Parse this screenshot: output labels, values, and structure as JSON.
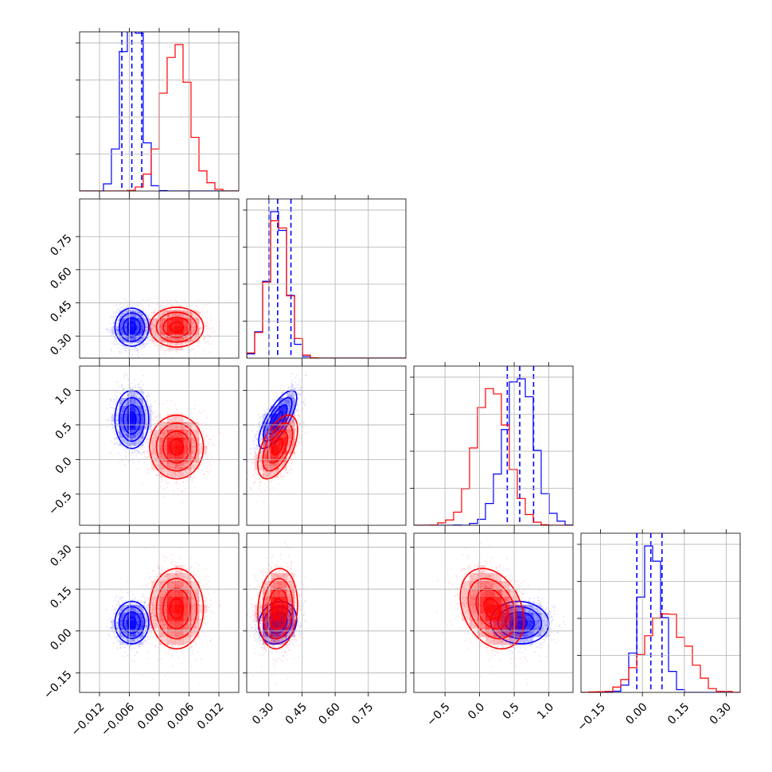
{
  "chart_data": {
    "type": "corner",
    "grid": true,
    "colors": {
      "blue": "#0000ff",
      "red": "#ff0000"
    },
    "parameters": [
      {
        "range": [
          -0.016,
          0.016
        ],
        "ticks": [
          -0.012,
          -0.006,
          0.0,
          0.006,
          0.012
        ],
        "tick_labels": [
          "−0.012",
          "−0.006",
          "0.000",
          "0.006",
          "0.012"
        ]
      },
      {
        "range": [
          0.2,
          0.92
        ],
        "ticks": [
          0.3,
          0.45,
          0.6,
          0.75
        ],
        "tick_labels": [
          "0.30",
          "0.45",
          "0.60",
          "0.75"
        ]
      },
      {
        "range": [
          -0.95,
          1.35
        ],
        "ticks": [
          -0.5,
          0.0,
          0.5,
          1.0
        ],
        "tick_labels": [
          "−0.5",
          "0.0",
          "0.5",
          "1.0"
        ]
      },
      {
        "range": [
          -0.22,
          0.35
        ],
        "ticks": [
          -0.15,
          0.0,
          0.15,
          0.3
        ],
        "tick_labels": [
          "−0.15",
          "0.00",
          "0.15",
          "0.30"
        ]
      }
    ],
    "series": [
      {
        "color": "blue",
        "means": [
          -0.0055,
          0.34,
          0.58,
          0.03
        ],
        "sds": [
          0.0017,
          0.043,
          0.21,
          0.038
        ],
        "correlations": [
          [
            0,
            1,
            0.0
          ],
          [
            0,
            2,
            0.0
          ],
          [
            0,
            3,
            0.0
          ],
          [
            1,
            2,
            0.75
          ],
          [
            1,
            3,
            0.15
          ],
          [
            2,
            3,
            -0.05
          ]
        ],
        "quantiles": [
          [
            -0.0075,
            -0.0055,
            -0.0035
          ],
          [
            0.3,
            0.34,
            0.4
          ],
          [
            0.4,
            0.58,
            0.78
          ],
          [
            -0.02,
            0.03,
            0.07
          ]
        ],
        "hist_clip": [
          2.2,
          null,
          null,
          null
        ]
      },
      {
        "color": "red",
        "means": [
          0.0035,
          0.34,
          0.18,
          0.08
        ],
        "sds": [
          0.0027,
          0.045,
          0.23,
          0.072
        ],
        "correlations": [
          [
            0,
            1,
            0.0
          ],
          [
            0,
            2,
            0.0
          ],
          [
            0,
            3,
            0.0
          ],
          [
            1,
            2,
            0.55
          ],
          [
            1,
            3,
            0.1
          ],
          [
            2,
            3,
            -0.3
          ]
        ],
        "quantiles": null,
        "hist_clip": [
          null,
          null,
          null,
          null
        ]
      }
    ]
  }
}
